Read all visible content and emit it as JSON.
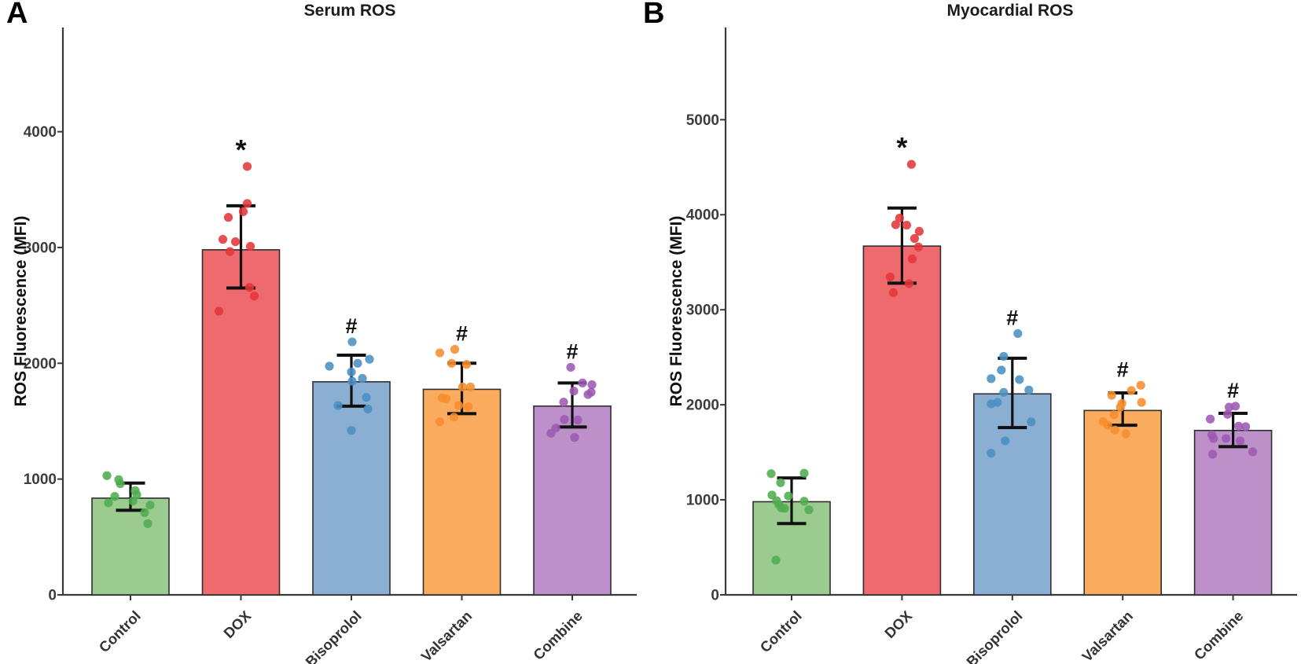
{
  "chart_data": [
    {
      "type": "bar",
      "panel_label": "A",
      "title": "Serum ROS",
      "xlabel": "",
      "ylabel": "ROS Fluorescence (MFI)",
      "categories": [
        "Control",
        "DOX",
        "Bisoprolol",
        "Valsartan",
        "Combine"
      ],
      "values": [
        835,
        2980,
        1840,
        1775,
        1630
      ],
      "error_low": [
        730,
        2650,
        1630,
        1565,
        1450
      ],
      "error_high": [
        965,
        3360,
        2070,
        2000,
        1830
      ],
      "significance": [
        "",
        "*",
        "#",
        "#",
        "#"
      ],
      "y_ticks": [
        0,
        1000,
        2000,
        3000,
        4000
      ],
      "ylim": [
        0,
        4900
      ],
      "grid": "off",
      "legend": "none",
      "bar_colors": [
        "#9CCB90",
        "#EE6A6E",
        "#8AAFD3",
        "#FBAB5E",
        "#BD90CA"
      ],
      "point_colors": [
        "#4EAD50",
        "#E23539",
        "#4A90C4",
        "#F78D2E",
        "#9C59B2"
      ],
      "scatter_points": [
        [
          [
            1030,
            -30
          ],
          [
            995,
            -15
          ],
          [
            960,
            -13
          ],
          [
            900,
            6
          ],
          [
            865,
            8
          ],
          [
            850,
            -20
          ],
          [
            810,
            3
          ],
          [
            795,
            -28
          ],
          [
            775,
            25
          ],
          [
            710,
            18
          ],
          [
            615,
            22
          ]
        ],
        [
          [
            3700,
            8
          ],
          [
            3380,
            8
          ],
          [
            3310,
            3
          ],
          [
            3260,
            -16
          ],
          [
            3070,
            -23
          ],
          [
            3050,
            -7
          ],
          [
            3010,
            12
          ],
          [
            2965,
            -14
          ],
          [
            2655,
            11
          ],
          [
            2580,
            17
          ],
          [
            2450,
            -28
          ]
        ],
        [
          [
            2185,
            1
          ],
          [
            2035,
            23
          ],
          [
            2000,
            8
          ],
          [
            1975,
            -28
          ],
          [
            1925,
            0
          ],
          [
            1870,
            14
          ],
          [
            1845,
            1
          ],
          [
            1705,
            19
          ],
          [
            1635,
            -17
          ],
          [
            1605,
            21
          ],
          [
            1420,
            0
          ]
        ],
        [
          [
            2120,
            -9
          ],
          [
            2090,
            -28
          ],
          [
            2000,
            -13
          ],
          [
            1990,
            6
          ],
          [
            1795,
            1
          ],
          [
            1795,
            11
          ],
          [
            1700,
            -25
          ],
          [
            1695,
            -20
          ],
          [
            1635,
            -4
          ],
          [
            1625,
            8
          ],
          [
            1535,
            -10
          ],
          [
            1495,
            -28
          ]
        ],
        [
          [
            1965,
            -2
          ],
          [
            1830,
            13
          ],
          [
            1815,
            25
          ],
          [
            1760,
            2
          ],
          [
            1750,
            24
          ],
          [
            1730,
            20
          ],
          [
            1665,
            -11
          ],
          [
            1515,
            -10
          ],
          [
            1510,
            7
          ],
          [
            1440,
            -21
          ],
          [
            1395,
            -27
          ],
          [
            1360,
            3
          ]
        ]
      ]
    },
    {
      "type": "bar",
      "panel_label": "B",
      "title": "Myocardial ROS",
      "xlabel": "",
      "ylabel": "ROS Fluorescence (MFI)",
      "categories": [
        "Control",
        "DOX",
        "Bisoprolol",
        "Valsartan",
        "Combine"
      ],
      "values": [
        980,
        3670,
        2115,
        1940,
        1730
      ],
      "error_low": [
        750,
        3280,
        1760,
        1785,
        1560
      ],
      "error_high": [
        1230,
        4070,
        2490,
        2125,
        1910
      ],
      "significance": [
        "",
        "*",
        "#",
        "#",
        "#"
      ],
      "y_ticks": [
        0,
        1000,
        2000,
        3000,
        4000,
        5000
      ],
      "ylim": [
        0,
        5970
      ],
      "grid": "off",
      "legend": "none",
      "bar_colors": [
        "#9CCB90",
        "#EE6A6E",
        "#8AAFD3",
        "#FBAB5E",
        "#BD90CA"
      ],
      "point_colors": [
        "#4EAD50",
        "#E23539",
        "#4A90C4",
        "#F78D2E",
        "#9C59B2"
      ],
      "scatter_points": [
        [
          [
            1280,
            16
          ],
          [
            1275,
            -26
          ],
          [
            1180,
            -14
          ],
          [
            1050,
            -25
          ],
          [
            1040,
            -4
          ],
          [
            990,
            -19
          ],
          [
            985,
            16
          ],
          [
            950,
            -16
          ],
          [
            915,
            -13
          ],
          [
            910,
            -9
          ],
          [
            895,
            22
          ],
          [
            365,
            -20
          ]
        ],
        [
          [
            4530,
            12
          ],
          [
            3965,
            -3
          ],
          [
            3895,
            -8
          ],
          [
            3890,
            6
          ],
          [
            3825,
            22
          ],
          [
            3750,
            16
          ],
          [
            3660,
            21
          ],
          [
            3535,
            13
          ],
          [
            3345,
            -15
          ],
          [
            3275,
            9
          ],
          [
            3180,
            -11
          ]
        ],
        [
          [
            2750,
            7
          ],
          [
            2510,
            -11
          ],
          [
            2365,
            -14
          ],
          [
            2275,
            -27
          ],
          [
            2265,
            9
          ],
          [
            2155,
            21
          ],
          [
            2130,
            -11
          ],
          [
            2025,
            -19
          ],
          [
            2010,
            -27
          ],
          [
            1820,
            24
          ],
          [
            1620,
            -9
          ],
          [
            1490,
            -27
          ]
        ],
        [
          [
            2205,
            23
          ],
          [
            2150,
            11
          ],
          [
            2100,
            -14
          ],
          [
            2025,
            24
          ],
          [
            2015,
            -1
          ],
          [
            1975,
            -3
          ],
          [
            1895,
            -11
          ],
          [
            1825,
            -25
          ],
          [
            1785,
            -19
          ],
          [
            1735,
            -10
          ],
          [
            1695,
            4
          ]
        ],
        [
          [
            1985,
            3
          ],
          [
            1975,
            -5
          ],
          [
            1900,
            -7
          ],
          [
            1850,
            -29
          ],
          [
            1775,
            7
          ],
          [
            1770,
            16
          ],
          [
            1685,
            -27
          ],
          [
            1645,
            -25
          ],
          [
            1645,
            -9
          ],
          [
            1620,
            9
          ],
          [
            1505,
            25
          ],
          [
            1480,
            -26
          ]
        ]
      ]
    }
  ],
  "style": {
    "axis_color": "#3a3a3a",
    "tick_label_color": "#3d3d3d",
    "category_label_color": "#333333",
    "bar_border_color": "#2f2f2f",
    "error_bar_color": "#111111",
    "sig_marker_color": "#111111"
  }
}
